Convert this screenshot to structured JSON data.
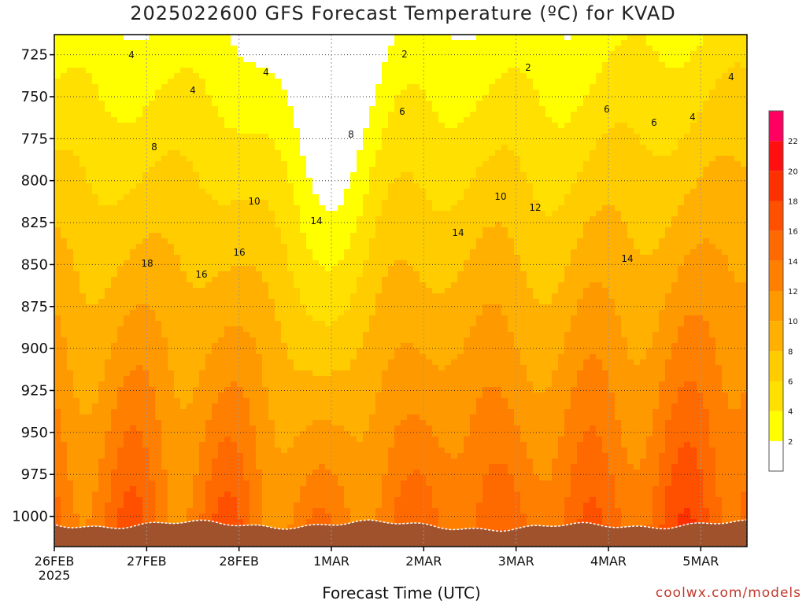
{
  "chart_data": {
    "type": "heatmap",
    "title": "2025022600 GFS Forecast Temperature (ºC) for KVAD",
    "xlabel": "Forecast Time (UTC)",
    "ylabel": "",
    "credit": "coolwx.com/models",
    "x_ticks": [
      "26FEB",
      "27FEB",
      "28FEB",
      "1MAR",
      "2MAR",
      "3MAR",
      "4MAR",
      "5MAR"
    ],
    "x_year_label": "2025",
    "x_range_days": [
      0,
      7.5
    ],
    "y_ticks": [
      "725",
      "750",
      "775",
      "800",
      "825",
      "850",
      "875",
      "900",
      "925",
      "950",
      "975",
      "1000"
    ],
    "y_range_hpa": [
      713,
      1018
    ],
    "colorbar": {
      "levels": [
        "2",
        "4",
        "6",
        "8",
        "10",
        "12",
        "14",
        "16",
        "18",
        "20",
        "22"
      ],
      "colors": [
        "#ffffff",
        "#ffff00",
        "#ffe000",
        "#ffcc00",
        "#ffb000",
        "#ff9900",
        "#ff8000",
        "#ff6a00",
        "#ff5000",
        "#ff3000",
        "#ff1010",
        "#ff0060"
      ]
    },
    "grid": true,
    "column_labels": [
      "4",
      "2",
      "2",
      "4",
      "4",
      "6",
      "6",
      "4",
      "4",
      "6",
      "8",
      "8",
      "10",
      "10",
      "12",
      "14",
      "14",
      "14",
      "16",
      "18",
      "16"
    ]
  }
}
